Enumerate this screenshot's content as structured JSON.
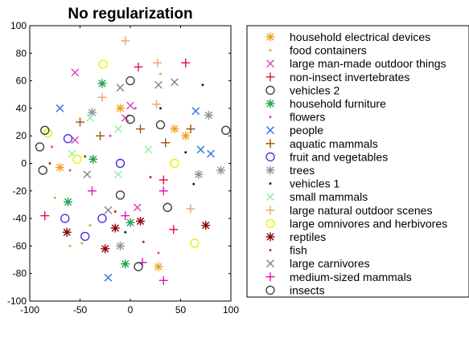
{
  "chart_data": {
    "type": "scatter",
    "title": "No regularization",
    "xlabel": "",
    "ylabel": "",
    "xlim": [
      -100,
      100
    ],
    "ylim": [
      -100,
      100
    ],
    "x_ticks": [
      "-100",
      "-50",
      "0",
      "50",
      "100"
    ],
    "y_ticks": [
      "100",
      "80",
      "60",
      "40",
      "20",
      "0",
      "-20",
      "-40",
      "-60",
      "-80",
      "-100"
    ],
    "grid": false,
    "legend_position": "right",
    "series": [
      {
        "name": "household electrical devices",
        "color": "#f0a020",
        "marker": "asterisk",
        "points": [
          [
            -70,
            -3
          ],
          [
            -10,
            40
          ],
          [
            44,
            25
          ],
          [
            55,
            20
          ],
          [
            28,
            -75
          ]
        ]
      },
      {
        "name": "food containers",
        "color": "#f0a020",
        "marker": "dot",
        "points": [
          [
            30,
            65
          ],
          [
            -40,
            -45
          ],
          [
            -48,
            -58
          ],
          [
            -60,
            -60
          ],
          [
            -75,
            -25
          ]
        ]
      },
      {
        "name": "large man-made outdoor things",
        "color": "#e040c0",
        "marker": "x",
        "points": [
          [
            -55,
            66
          ],
          [
            -55,
            17
          ],
          [
            0,
            42
          ],
          [
            7,
            -32
          ],
          [
            -5,
            33
          ]
        ]
      },
      {
        "name": "non-insect invertebrates",
        "color": "#e0104a",
        "marker": "plus",
        "points": [
          [
            8,
            70
          ],
          [
            55,
            73
          ],
          [
            33,
            -12
          ],
          [
            43,
            -48
          ],
          [
            -85,
            -38
          ]
        ]
      },
      {
        "name": "vehicles 2",
        "color": "#404040",
        "marker": "circle",
        "points": [
          [
            0,
            60
          ],
          [
            30,
            28
          ],
          [
            0,
            32
          ],
          [
            -10,
            -23
          ],
          [
            37,
            -32
          ]
        ]
      },
      {
        "name": "household furniture",
        "color": "#20a050",
        "marker": "asterisk",
        "points": [
          [
            -28,
            58
          ],
          [
            -37,
            3
          ],
          [
            -62,
            -28
          ],
          [
            0,
            -43
          ],
          [
            -5,
            -73
          ]
        ]
      },
      {
        "name": "flowers",
        "color": "#e040c0",
        "marker": "dot",
        "points": [
          [
            -78,
            12
          ],
          [
            -60,
            -5
          ],
          [
            -20,
            20
          ],
          [
            5,
            40
          ],
          [
            28,
            -65
          ]
        ]
      },
      {
        "name": "people",
        "color": "#3070e0",
        "marker": "x",
        "points": [
          [
            -70,
            40
          ],
          [
            65,
            38
          ],
          [
            70,
            10
          ],
          [
            80,
            7
          ],
          [
            -22,
            -83
          ]
        ]
      },
      {
        "name": "aquatic mammals",
        "color": "#a05000",
        "marker": "plus",
        "points": [
          [
            -50,
            30
          ],
          [
            10,
            25
          ],
          [
            -30,
            20
          ],
          [
            60,
            25
          ],
          [
            35,
            15
          ]
        ]
      },
      {
        "name": "fruit and vegetables",
        "color": "#5030e0",
        "marker": "circle",
        "points": [
          [
            -62,
            18
          ],
          [
            -10,
            0
          ],
          [
            -28,
            -40
          ],
          [
            -45,
            -53
          ],
          [
            -65,
            -40
          ]
        ]
      },
      {
        "name": "trees",
        "color": "#9090a0",
        "marker": "asterisk",
        "points": [
          [
            -38,
            37
          ],
          [
            78,
            35
          ],
          [
            68,
            -8
          ],
          [
            90,
            -5
          ],
          [
            -10,
            -60
          ]
        ]
      },
      {
        "name": "vehicles 1",
        "color": "#102060",
        "marker": "dot",
        "points": [
          [
            72,
            57
          ],
          [
            55,
            8
          ],
          [
            63,
            -15
          ],
          [
            -5,
            -50
          ],
          [
            30,
            40
          ]
        ]
      },
      {
        "name": "small mammals",
        "color": "#90f0a0",
        "marker": "x",
        "points": [
          [
            -12,
            25
          ],
          [
            18,
            10
          ],
          [
            -12,
            -8
          ],
          [
            -58,
            7
          ],
          [
            -40,
            33
          ]
        ]
      },
      {
        "name": "large natural outdoor scenes",
        "color": "#f0a070",
        "marker": "plus",
        "points": [
          [
            -28,
            48
          ],
          [
            27,
            73
          ],
          [
            -5,
            89
          ],
          [
            26,
            43
          ],
          [
            60,
            -33
          ]
        ]
      },
      {
        "name": "large omnivores and herbivores",
        "color": "#f0f000",
        "marker": "circle",
        "points": [
          [
            -27,
            72
          ],
          [
            -82,
            22
          ],
          [
            -53,
            3
          ],
          [
            44,
            0
          ],
          [
            64,
            -58
          ]
        ]
      },
      {
        "name": "reptiles",
        "color": "#900000",
        "marker": "asterisk",
        "points": [
          [
            -63,
            -50
          ],
          [
            10,
            -42
          ],
          [
            -15,
            -47
          ],
          [
            75,
            -45
          ],
          [
            -25,
            -62
          ]
        ]
      },
      {
        "name": "fish",
        "color": "#b03010",
        "marker": "dot",
        "points": [
          [
            -80,
            0
          ],
          [
            -45,
            5
          ],
          [
            20,
            -10
          ],
          [
            13,
            -57
          ],
          [
            -15,
            -35
          ]
        ]
      },
      {
        "name": "large carnivores",
        "color": "#808090",
        "marker": "x",
        "points": [
          [
            -10,
            55
          ],
          [
            28,
            57
          ],
          [
            44,
            59
          ],
          [
            -43,
            -8
          ],
          [
            -22,
            -34
          ]
        ]
      },
      {
        "name": "medium-sized mammals",
        "color": "#e010c0",
        "marker": "plus",
        "points": [
          [
            -38,
            -20
          ],
          [
            33,
            -20
          ],
          [
            -5,
            -38
          ],
          [
            12,
            -72
          ],
          [
            33,
            -85
          ]
        ]
      },
      {
        "name": "insects",
        "color": "#404040",
        "marker": "circle",
        "points": [
          [
            -90,
            12
          ],
          [
            -85,
            24
          ],
          [
            -87,
            -5
          ],
          [
            95,
            24
          ],
          [
            8,
            -75
          ]
        ]
      }
    ]
  }
}
